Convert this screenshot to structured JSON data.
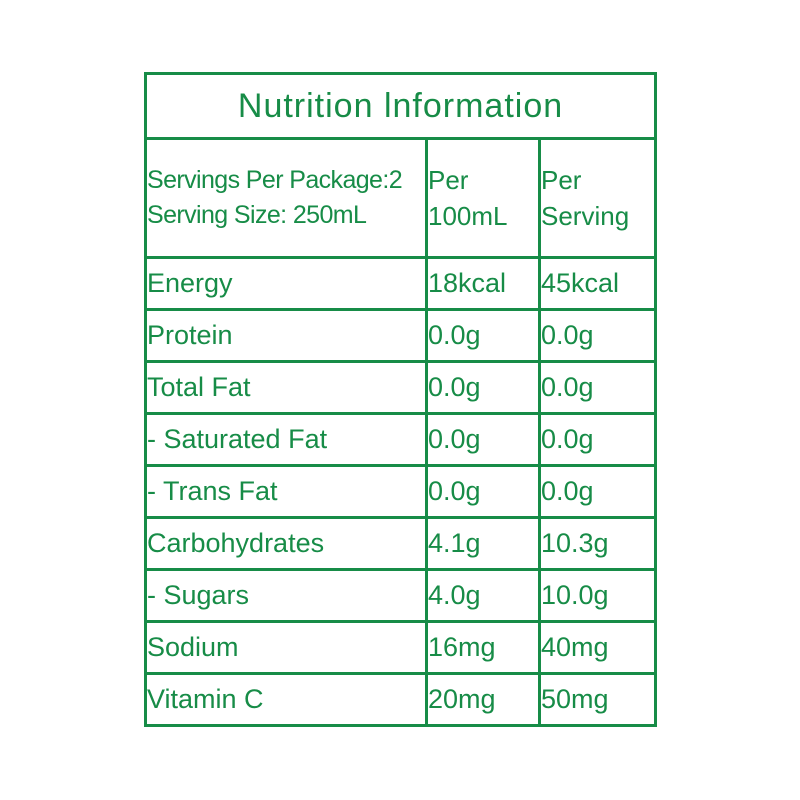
{
  "accent_color": "#178c47",
  "table": {
    "title": "Nutrition lnformation",
    "header": {
      "col1_line1": "Servings Per Package:2",
      "col1_line2": "Serving Size: 250mL",
      "col2_line1": "Per",
      "col2_line2": "100mL",
      "col3_line1": "Per",
      "col3_line2": "Serving"
    },
    "rows": [
      {
        "label": "Energy",
        "per_100ml": "18kcal",
        "per_serving": "45kcal"
      },
      {
        "label": "Protein",
        "per_100ml": "0.0g",
        "per_serving": "0.0g"
      },
      {
        "label": "Total Fat",
        "per_100ml": "0.0g",
        "per_serving": "0.0g"
      },
      {
        "label": "- Saturated Fat",
        "per_100ml": "0.0g",
        "per_serving": "0.0g"
      },
      {
        "label": "- Trans Fat",
        "per_100ml": "0.0g",
        "per_serving": "0.0g"
      },
      {
        "label": "Carbohydrates",
        "per_100ml": "4.1g",
        "per_serving": "10.3g"
      },
      {
        "label": "- Sugars",
        "per_100ml": "4.0g",
        "per_serving": "10.0g"
      },
      {
        "label": "Sodium",
        "per_100ml": "16mg",
        "per_serving": "40mg"
      },
      {
        "label": "Vitamin C",
        "per_100ml": "20mg",
        "per_serving": "50mg"
      }
    ]
  }
}
